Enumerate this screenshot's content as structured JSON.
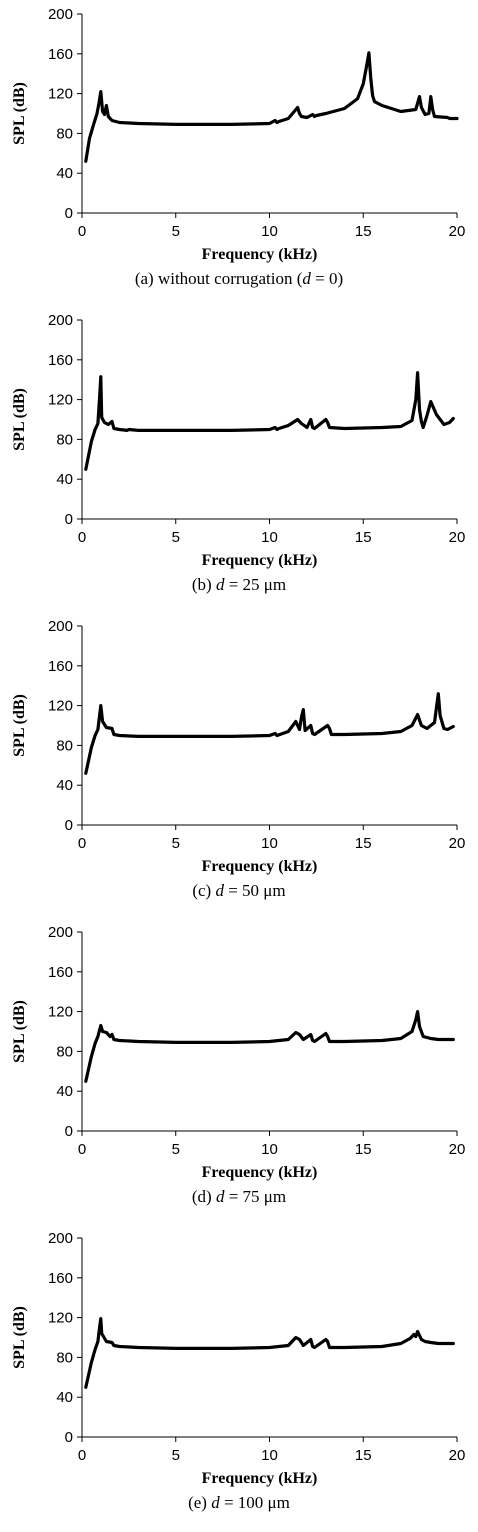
{
  "chart_data": [
    {
      "type": "line",
      "caption": {
        "pre": "(a) without corrugation (",
        "var": "d",
        "post": " = 0)"
      },
      "xlabel": "Frequency (kHz)",
      "ylabel": "SPL (dB)",
      "xlim": [
        0,
        20
      ],
      "ylim": [
        0,
        200
      ],
      "xticks": [
        0,
        5,
        10,
        15,
        20
      ],
      "yticks": [
        0,
        40,
        80,
        120,
        160,
        200
      ],
      "grid": false,
      "series": [
        {
          "color": "#000000",
          "x": [
            0.2,
            0.4,
            0.6,
            0.8,
            0.9,
            1.0,
            1.1,
            1.2,
            1.3,
            1.4,
            1.5,
            1.6,
            2,
            3,
            5,
            8,
            10,
            10.3,
            10.4,
            10.5,
            11,
            11.5,
            11.6,
            11.7,
            12,
            12.3,
            12.4,
            12.5,
            13,
            14,
            14.7,
            15.0,
            15.2,
            15.3,
            15.4,
            15.5,
            15.6,
            16,
            17,
            17.8,
            18.0,
            18.1,
            18.3,
            18.5,
            18.6,
            18.7,
            18.8,
            19.5,
            19.6,
            19.7,
            20
          ],
          "y": [
            52,
            75,
            88,
            100,
            110,
            122,
            102,
            99,
            108,
            97,
            95,
            93,
            91,
            90,
            89,
            89,
            90,
            93,
            91,
            92,
            95,
            106,
            100,
            97,
            96,
            99,
            97,
            98,
            100,
            105,
            115,
            130,
            150,
            161,
            135,
            118,
            112,
            108,
            102,
            104,
            117,
            106,
            99,
            100,
            117,
            104,
            97,
            96,
            95,
            95,
            95
          ]
        }
      ]
    },
    {
      "type": "line",
      "caption": {
        "pre": "(b) ",
        "var": "d",
        "post": " = 25 μm"
      },
      "xlabel": "Frequency (kHz)",
      "ylabel": "SPL (dB)",
      "xlim": [
        0,
        20
      ],
      "ylim": [
        0,
        200
      ],
      "xticks": [
        0,
        5,
        10,
        15,
        20
      ],
      "yticks": [
        0,
        40,
        80,
        120,
        160,
        200
      ],
      "grid": false,
      "series": [
        {
          "color": "#000000",
          "x": [
            0.2,
            0.5,
            0.7,
            0.85,
            0.95,
            1.0,
            1.05,
            1.2,
            1.4,
            1.6,
            1.7,
            2,
            2.4,
            2.5,
            3,
            5,
            8,
            10,
            10.3,
            10.4,
            10.5,
            11,
            11.5,
            11.7,
            12.0,
            12.2,
            12.3,
            12.4,
            13.0,
            13.1,
            13.2,
            14,
            16,
            17,
            17.6,
            17.8,
            17.9,
            18.0,
            18.1,
            18.2,
            18.4,
            18.6,
            18.9,
            19.3,
            19.6,
            19.8
          ],
          "y": [
            50,
            78,
            90,
            96,
            125,
            143,
            102,
            97,
            95,
            98,
            91,
            90,
            89,
            90,
            89,
            89,
            89,
            90,
            92,
            90,
            91,
            94,
            100,
            96,
            92,
            100,
            92,
            91,
            100,
            97,
            92,
            91,
            92,
            93,
            99,
            120,
            147,
            110,
            98,
            92,
            104,
            118,
            105,
            95,
            97,
            101
          ]
        }
      ]
    },
    {
      "type": "line",
      "caption": {
        "pre": "(c) ",
        "var": "d",
        "post": " = 50 μm"
      },
      "xlabel": "Frequency (kHz)",
      "ylabel": "SPL (dB)",
      "xlim": [
        0,
        20
      ],
      "ylim": [
        0,
        200
      ],
      "xticks": [
        0,
        5,
        10,
        15,
        20
      ],
      "yticks": [
        0,
        40,
        80,
        120,
        160,
        200
      ],
      "grid": false,
      "series": [
        {
          "color": "#000000",
          "x": [
            0.2,
            0.5,
            0.7,
            0.85,
            1.0,
            1.1,
            1.3,
            1.6,
            1.7,
            2,
            3,
            5,
            8,
            10,
            10.3,
            10.4,
            11,
            11.4,
            11.6,
            11.7,
            11.8,
            11.9,
            12.2,
            12.3,
            12.4,
            13.1,
            13.2,
            13.3,
            14,
            16,
            17,
            17.6,
            17.9,
            18.1,
            18.4,
            18.8,
            19.0,
            19.1,
            19.3,
            19.5,
            19.8
          ],
          "y": [
            52,
            78,
            90,
            96,
            120,
            104,
            98,
            97,
            91,
            90,
            89,
            89,
            89,
            90,
            92,
            90,
            94,
            104,
            96,
            108,
            116,
            95,
            100,
            92,
            91,
            100,
            97,
            91,
            91,
            92,
            94,
            100,
            111,
            100,
            97,
            103,
            132,
            110,
            97,
            96,
            99
          ]
        }
      ]
    },
    {
      "type": "line",
      "caption": {
        "pre": "(d) ",
        "var": "d",
        "post": " = 75 μm"
      },
      "xlabel": "Frequency (kHz)",
      "ylabel": "SPL (dB)",
      "xlim": [
        0,
        20
      ],
      "ylim": [
        0,
        200
      ],
      "xticks": [
        0,
        5,
        10,
        15,
        20
      ],
      "yticks": [
        0,
        40,
        80,
        120,
        160,
        200
      ],
      "grid": false,
      "series": [
        {
          "color": "#000000",
          "x": [
            0.2,
            0.5,
            0.7,
            0.85,
            1.0,
            1.1,
            1.3,
            1.5,
            1.6,
            1.7,
            2,
            3,
            5,
            8,
            10,
            11,
            11.4,
            11.6,
            11.8,
            12.2,
            12.3,
            12.4,
            13.0,
            13.1,
            13.2,
            14,
            16,
            17,
            17.6,
            17.8,
            17.9,
            18.0,
            18.2,
            18.6,
            19.0,
            19.8
          ],
          "y": [
            50,
            75,
            88,
            95,
            106,
            100,
            99,
            95,
            97,
            92,
            91,
            90,
            89,
            89,
            90,
            92,
            99,
            97,
            92,
            97,
            91,
            90,
            98,
            95,
            90,
            90,
            91,
            93,
            100,
            112,
            120,
            105,
            95,
            93,
            92,
            92
          ]
        }
      ]
    },
    {
      "type": "line",
      "caption": {
        "pre": "(e) ",
        "var": "d",
        "post": " = 100 μm"
      },
      "xlabel": "Frequency (kHz)",
      "ylabel": "SPL (dB)",
      "xlim": [
        0,
        20
      ],
      "ylim": [
        0,
        200
      ],
      "xticks": [
        0,
        5,
        10,
        15,
        20
      ],
      "yticks": [
        0,
        40,
        80,
        120,
        160,
        200
      ],
      "grid": false,
      "series": [
        {
          "color": "#000000",
          "x": [
            0.2,
            0.5,
            0.7,
            0.85,
            0.95,
            1.0,
            1.05,
            1.3,
            1.6,
            1.7,
            2,
            3,
            5,
            8,
            10,
            11,
            11.4,
            11.6,
            11.8,
            12.2,
            12.3,
            12.4,
            13.0,
            13.1,
            13.2,
            14,
            16,
            17,
            17.5,
            17.7,
            17.8,
            17.9,
            18.0,
            18.1,
            18.3,
            18.6,
            19.0,
            19.8
          ],
          "y": [
            50,
            75,
            88,
            96,
            112,
            119,
            104,
            96,
            95,
            92,
            91,
            90,
            89,
            89,
            90,
            92,
            100,
            98,
            92,
            98,
            91,
            90,
            98,
            96,
            90,
            90,
            91,
            94,
            99,
            103,
            101,
            106,
            102,
            98,
            96,
            95,
            94,
            94
          ]
        }
      ]
    }
  ]
}
